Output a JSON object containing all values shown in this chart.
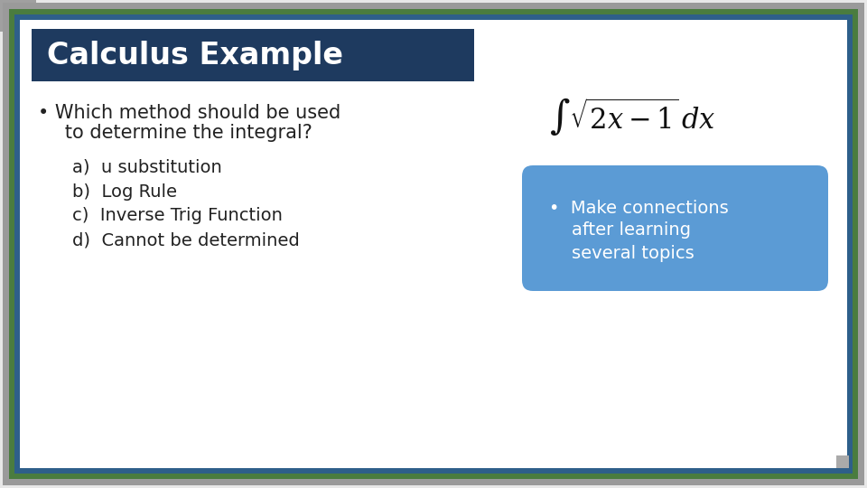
{
  "title": "Calculus Example",
  "title_bg_color": "#1e3a5f",
  "title_text_color": "#ffffff",
  "body_bg_color": "#ffffff",
  "outer_border_color_gray": "#8a8a8a",
  "outer_border_color_green": "#4a7c3f",
  "outer_border_color_blue": "#2e5f8a",
  "bullet_line1": "• Which method should be used",
  "bullet_line2": "   to determine the integral?",
  "options": [
    "a)  u substitution",
    "b)  Log Rule",
    "c)  Inverse Trig Function",
    "d)  Cannot be determined"
  ],
  "note_bg_color": "#5b9bd5",
  "note_text_color": "#ffffff",
  "note_line1": "•  Make connections",
  "note_line2": "    after learning",
  "note_line3": "    several topics",
  "slide_bg_color": "#e8e8e8",
  "inner_bg_color": "#ffffff",
  "text_color": "#222222"
}
